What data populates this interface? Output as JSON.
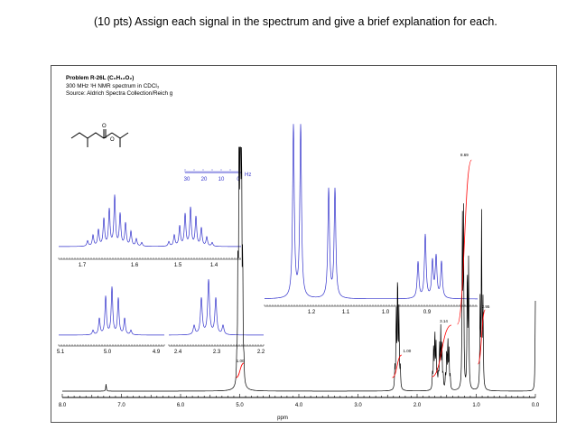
{
  "question": {
    "text": "(10 pts) Assign each signal in the spectrum and give a brief explanation for each."
  },
  "figure": {
    "title": "Problem R-26L (C₆H₁₂O₂)",
    "spectrum_line": "300 MHz ¹H NMR spectrum in CDCl₃",
    "source_line": "Source: Aldrich Spectra Collection/Reich g"
  },
  "chart_data": {
    "type": "line",
    "title": "Problem R-26L (C6H12O2)",
    "xlabel": "ppm",
    "xlim": [
      8.0,
      0.0
    ],
    "x_ticks": [
      "8.0",
      "7.0",
      "6.0",
      "5.0",
      "4.0",
      "3.0",
      "2.0",
      "1.0",
      "0.0"
    ],
    "peaks_ppm": [
      4.99,
      2.33,
      1.68,
      1.48,
      1.23,
      1.14,
      0.91
    ],
    "integrals": [
      {
        "label": "1.00",
        "ppm": 4.99,
        "value": 1.0
      },
      {
        "label": "1.00",
        "ppm": 2.33,
        "value": 1.0
      },
      {
        "label": "3.14",
        "ppm": 1.58,
        "value": 3.14
      },
      {
        "label": "8.69",
        "ppm": 1.2,
        "value": 8.69
      },
      {
        "label": "2.95",
        "ppm": 0.91,
        "value": 2.95
      }
    ],
    "hz_scale_ticks": [
      "30",
      "20",
      "10",
      "0"
    ],
    "hz_scale_unit": "Hz",
    "insets": [
      {
        "region": "1.7-1.4 ppm",
        "ticks": [
          "1.7",
          "1.6",
          "1.5",
          "1.4"
        ]
      },
      {
        "region": "5.1-4.9 ppm",
        "ticks": [
          "5.1",
          "5.0",
          "4.9"
        ]
      },
      {
        "region": "2.4-2.2 ppm",
        "ticks": [
          "2.4",
          "2.3",
          "2.2"
        ]
      },
      {
        "region": "1.25-0.85 ppm",
        "ticks": [
          "1.2",
          "1.1",
          "1.0",
          "0.9"
        ]
      }
    ],
    "colors": {
      "spectrum": "#000000",
      "inset": "#3333cc",
      "integral": "#ff0000"
    }
  }
}
